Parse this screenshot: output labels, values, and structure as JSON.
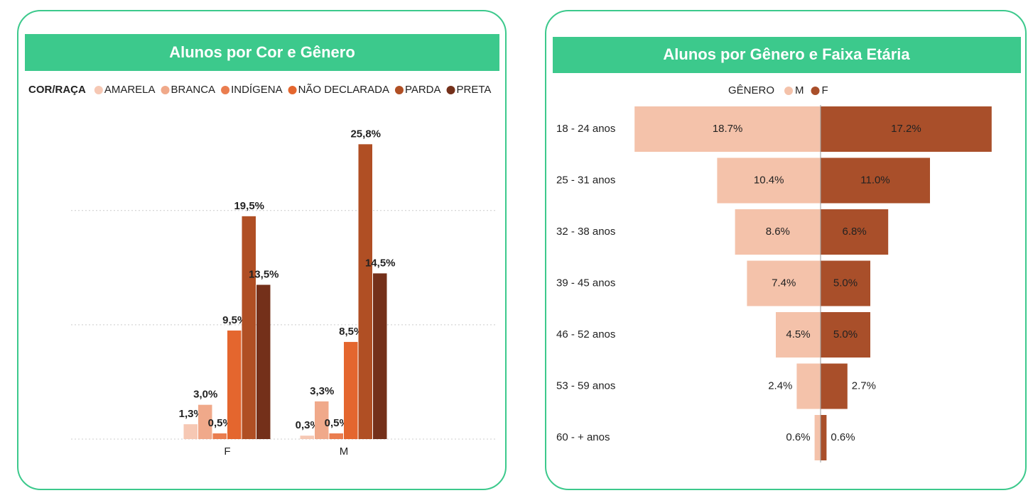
{
  "chart_data": [
    {
      "type": "bar",
      "title": "Alunos por Cor e Gênero",
      "legend_title": "COR/RAÇA",
      "categories": [
        "F",
        "M"
      ],
      "series": [
        {
          "name": "AMARELA",
          "color": "#f6c8b4",
          "values": [
            1.3,
            0.3
          ],
          "value_labels": [
            "1,3%",
            "0,3%"
          ]
        },
        {
          "name": "BRANCA",
          "color": "#f0a98a",
          "values": [
            3.0,
            3.3
          ],
          "value_labels": [
            "3,0%",
            "3,3%"
          ]
        },
        {
          "name": "INDÍGENA",
          "color": "#ea7d4f",
          "values": [
            0.5,
            0.5
          ],
          "value_labels": [
            "0,5%",
            "0,5%"
          ]
        },
        {
          "name": "NÃO DECLARADA",
          "color": "#e4662e",
          "values": [
            9.5,
            8.5
          ],
          "value_labels": [
            "9,5%",
            "8,5%"
          ]
        },
        {
          "name": "PARDA",
          "color": "#b04f24",
          "values": [
            19.5,
            25.8
          ],
          "value_labels": [
            "19,5%",
            "25,8%"
          ]
        },
        {
          "name": "PRETA",
          "color": "#74301a",
          "values": [
            13.5,
            14.5
          ],
          "value_labels": [
            "13,5%",
            "14,5%"
          ]
        }
      ],
      "ylim": [
        0,
        27
      ],
      "yticks": [
        0,
        10,
        20
      ],
      "grid": true
    },
    {
      "type": "butterfly",
      "title": "Alunos por Gênero e Faixa Etária",
      "legend_title": "GÊNERO",
      "categories": [
        "18 - 24 anos",
        "25 - 31 anos",
        "32 - 38 anos",
        "39 - 45 anos",
        "46 - 52 anos",
        "53 - 59 anos",
        "60 - + anos"
      ],
      "series": [
        {
          "name": "M",
          "color": "#f4c2aa",
          "values": [
            18.7,
            10.4,
            8.6,
            7.4,
            4.5,
            2.4,
            0.6
          ],
          "value_labels": [
            "18.7%",
            "10.4%",
            "8.6%",
            "7.4%",
            "4.5%",
            "2.4%",
            "0.6%"
          ]
        },
        {
          "name": "F",
          "color": "#a94f2a",
          "values": [
            17.2,
            11.0,
            6.8,
            5.0,
            5.0,
            2.7,
            0.6
          ],
          "value_labels": [
            "17.2%",
            "11.0%",
            "6.8%",
            "5.0%",
            "5.0%",
            "2.7%",
            "0.6%"
          ]
        }
      ],
      "xlim": [
        0,
        20
      ]
    }
  ]
}
